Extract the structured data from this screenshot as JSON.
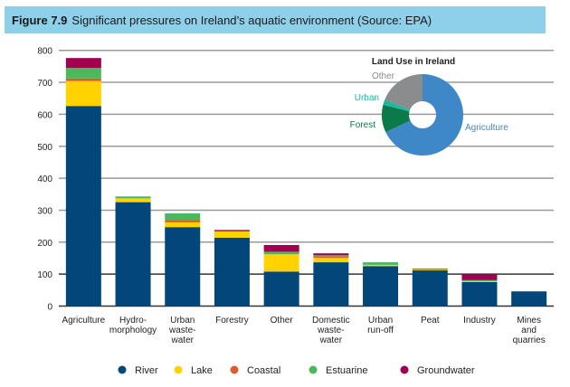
{
  "figure_label": "Figure 7.9",
  "figure_caption": "Significant pressures on Ireland’s aquatic environment (Source: EPA)",
  "chart_data": [
    {
      "type": "bar",
      "stacked": true,
      "categories": [
        [
          "Agriculture"
        ],
        [
          "Hydro-",
          "morphology"
        ],
        [
          "Urban",
          "waste-",
          "water"
        ],
        [
          "Forestry"
        ],
        [
          "Other"
        ],
        [
          "Domestic",
          "waste-",
          "water"
        ],
        [
          "Urban",
          "run-off"
        ],
        [
          "Peat"
        ],
        [
          "Industry"
        ],
        [
          "Mines",
          "and",
          "quarries"
        ]
      ],
      "series": [
        {
          "name": "River",
          "color": "#03477a",
          "values": [
            626,
            325,
            247,
            214,
            108,
            137,
            125,
            112,
            75,
            46
          ]
        },
        {
          "name": "Lake",
          "color": "#ffd200",
          "values": [
            78,
            12,
            15,
            20,
            54,
            14,
            4,
            3,
            3,
            0
          ]
        },
        {
          "name": "Coastal",
          "color": "#e05a2b",
          "values": [
            8,
            0,
            7,
            0,
            0,
            5,
            0,
            0,
            0,
            0
          ]
        },
        {
          "name": "Estuarine",
          "color": "#4cb85c",
          "values": [
            33,
            6,
            21,
            0,
            8,
            3,
            8,
            0,
            3,
            0
          ]
        },
        {
          "name": "Groundwater",
          "color": "#a0004f",
          "values": [
            31,
            0,
            0,
            4,
            21,
            6,
            0,
            2,
            18,
            0
          ]
        }
      ],
      "yticks": [
        0,
        100,
        200,
        300,
        400,
        500,
        600,
        700,
        800
      ],
      "ylim": [
        0,
        800
      ],
      "grid": true,
      "legend": "bottom"
    },
    {
      "type": "pie",
      "donut": true,
      "title": "Land Use in Ireland",
      "slices": [
        {
          "label": "Agriculture",
          "value": 68,
          "color": "#3f88c8"
        },
        {
          "label": "Forest",
          "value": 11,
          "color": "#0a7a48"
        },
        {
          "label": "Urban",
          "value": 2,
          "color": "#1ab8a0"
        },
        {
          "label": "Other",
          "value": 19,
          "color": "#8a8c8e"
        }
      ]
    }
  ]
}
